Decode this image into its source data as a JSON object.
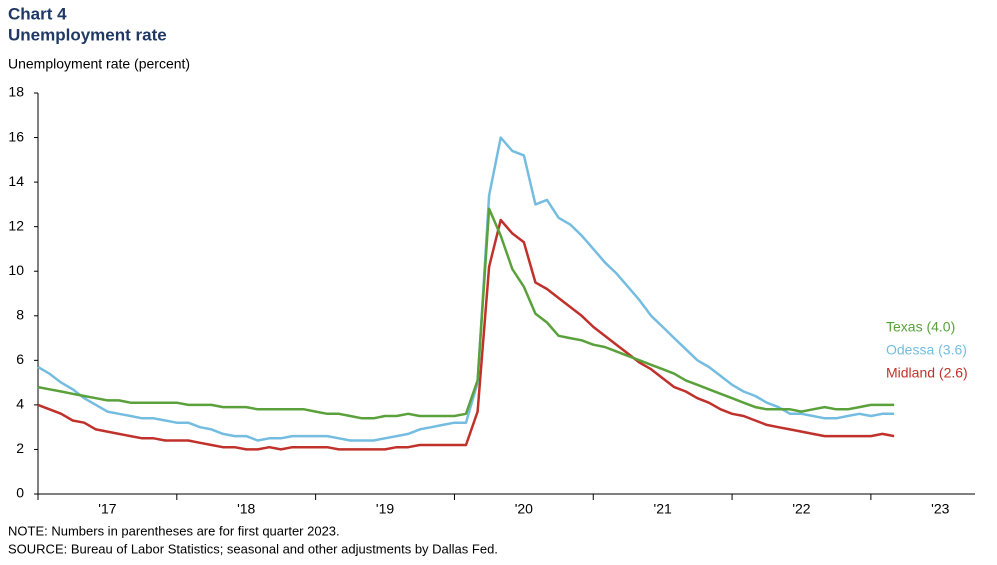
{
  "chart_data": {
    "type": "line",
    "title": "Chart 4",
    "subtitle": "Unemployment rate",
    "y_label": "Unemployment  rate (percent)",
    "notes": [
      "NOTE: Numbers in parentheses are for first quarter 2023.",
      "SOURCE: Bureau of Labor Statistics; seasonal and other adjustments by Dallas Fed."
    ],
    "x": [
      2017,
      2017.083,
      2017.167,
      2017.25,
      2017.333,
      2017.417,
      2017.5,
      2017.583,
      2017.667,
      2017.75,
      2017.833,
      2017.917,
      2018,
      2018.083,
      2018.167,
      2018.25,
      2018.333,
      2018.417,
      2018.5,
      2018.583,
      2018.667,
      2018.75,
      2018.833,
      2018.917,
      2019,
      2019.083,
      2019.167,
      2019.25,
      2019.333,
      2019.417,
      2019.5,
      2019.583,
      2019.667,
      2019.75,
      2019.833,
      2019.917,
      2020,
      2020.083,
      2020.167,
      2020.25,
      2020.333,
      2020.417,
      2020.5,
      2020.583,
      2020.667,
      2020.75,
      2020.833,
      2020.917,
      2021,
      2021.083,
      2021.167,
      2021.25,
      2021.333,
      2021.417,
      2021.5,
      2021.583,
      2021.667,
      2021.75,
      2021.833,
      2021.917,
      2022,
      2022.083,
      2022.167,
      2022.25,
      2022.333,
      2022.417,
      2022.5,
      2022.583,
      2022.667,
      2022.75,
      2022.833,
      2022.917,
      2023,
      2023.083,
      2023.167
    ],
    "series": [
      {
        "name": "Texas (4.0)",
        "color": "#5aa13c",
        "values": [
          4.8,
          4.7,
          4.6,
          4.5,
          4.4,
          4.3,
          4.2,
          4.2,
          4.1,
          4.1,
          4.1,
          4.1,
          4.1,
          4.0,
          4.0,
          4.0,
          3.9,
          3.9,
          3.9,
          3.8,
          3.8,
          3.8,
          3.8,
          3.8,
          3.7,
          3.6,
          3.6,
          3.5,
          3.4,
          3.4,
          3.5,
          3.5,
          3.6,
          3.5,
          3.5,
          3.5,
          3.5,
          3.6,
          5.1,
          12.8,
          11.6,
          10.1,
          9.3,
          8.1,
          7.7,
          7.1,
          7.0,
          6.9,
          6.7,
          6.6,
          6.4,
          6.2,
          6.0,
          5.8,
          5.6,
          5.4,
          5.1,
          4.9,
          4.7,
          4.5,
          4.3,
          4.1,
          3.9,
          3.8,
          3.8,
          3.8,
          3.7,
          3.8,
          3.9,
          3.8,
          3.8,
          3.9,
          4.0,
          4.0,
          4.0
        ]
      },
      {
        "name": "Odessa (3.6)",
        "color": "#74bde0",
        "values": [
          5.7,
          5.4,
          5.0,
          4.7,
          4.3,
          4.0,
          3.7,
          3.6,
          3.5,
          3.4,
          3.4,
          3.3,
          3.2,
          3.2,
          3.0,
          2.9,
          2.7,
          2.6,
          2.6,
          2.4,
          2.5,
          2.5,
          2.6,
          2.6,
          2.6,
          2.6,
          2.5,
          2.4,
          2.4,
          2.4,
          2.5,
          2.6,
          2.7,
          2.9,
          3.0,
          3.1,
          3.2,
          3.2,
          5.0,
          13.4,
          16.0,
          15.4,
          15.2,
          13.0,
          13.2,
          12.4,
          12.1,
          11.6,
          11.0,
          10.4,
          9.9,
          9.3,
          8.7,
          8.0,
          7.5,
          7.0,
          6.5,
          6.0,
          5.7,
          5.3,
          4.9,
          4.6,
          4.4,
          4.1,
          3.9,
          3.6,
          3.6,
          3.5,
          3.4,
          3.4,
          3.5,
          3.6,
          3.5,
          3.6,
          3.6
        ]
      },
      {
        "name": "Midland (2.6)",
        "color": "#c0312b",
        "values": [
          4.0,
          3.8,
          3.6,
          3.3,
          3.2,
          2.9,
          2.8,
          2.7,
          2.6,
          2.5,
          2.5,
          2.4,
          2.4,
          2.4,
          2.3,
          2.2,
          2.1,
          2.1,
          2.0,
          2.0,
          2.1,
          2.0,
          2.1,
          2.1,
          2.1,
          2.1,
          2.0,
          2.0,
          2.0,
          2.0,
          2.0,
          2.1,
          2.1,
          2.2,
          2.2,
          2.2,
          2.2,
          2.2,
          3.7,
          10.2,
          12.3,
          11.7,
          11.3,
          9.5,
          9.2,
          8.8,
          8.4,
          8.0,
          7.5,
          7.1,
          6.7,
          6.3,
          5.9,
          5.6,
          5.2,
          4.8,
          4.6,
          4.3,
          4.1,
          3.8,
          3.6,
          3.5,
          3.3,
          3.1,
          3.0,
          2.9,
          2.8,
          2.7,
          2.6,
          2.6,
          2.6,
          2.6,
          2.6,
          2.7,
          2.6
        ]
      }
    ],
    "xlim": [
      2017,
      2023.75
    ],
    "xticks": [
      {
        "value": 2017.5,
        "label": "'17"
      },
      {
        "value": 2018.5,
        "label": "'18"
      },
      {
        "value": 2019.5,
        "label": "'19"
      },
      {
        "value": 2020.5,
        "label": "'20"
      },
      {
        "value": 2021.5,
        "label": "'21"
      },
      {
        "value": 2022.5,
        "label": "'22"
      },
      {
        "value": 2023.5,
        "label": "'23"
      }
    ],
    "xtick_marks": [
      2017,
      2018,
      2019,
      2020,
      2021,
      2022,
      2023
    ],
    "ylim": [
      0,
      18
    ],
    "yticks": [
      0,
      2,
      4,
      6,
      8,
      10,
      12,
      14,
      16,
      18
    ],
    "grid": false
  }
}
